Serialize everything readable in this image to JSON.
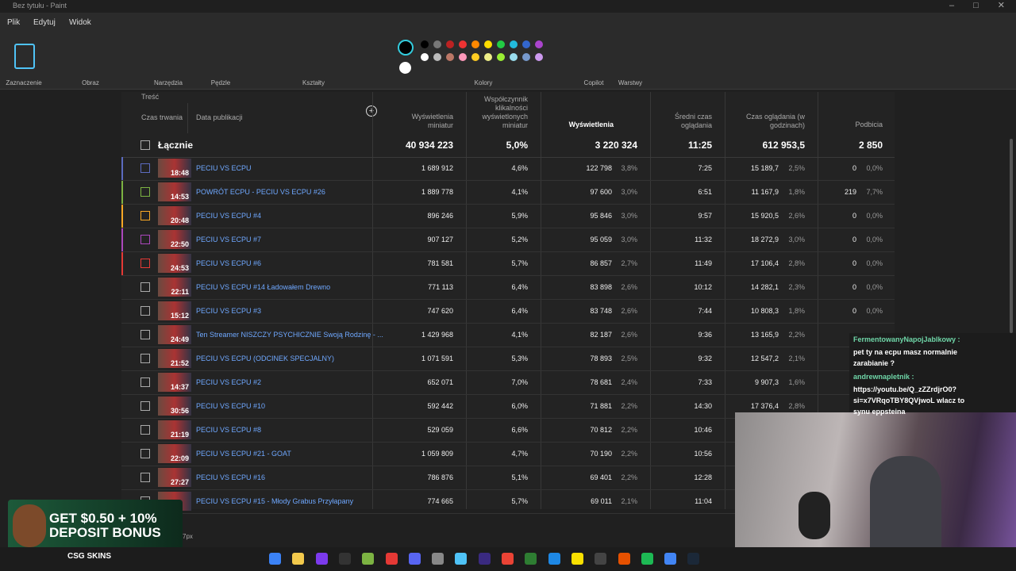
{
  "window": {
    "title": "Bez tytułu - Paint"
  },
  "menu": [
    "Plik",
    "Edytuj",
    "Widok"
  ],
  "ribbon": [
    "Zaznaczenie",
    "Obraz",
    "Narzędzia",
    "Pędzle",
    "Kształty",
    "Kolory",
    "Copilot",
    "Warstwy"
  ],
  "table": {
    "headers": {
      "content": "Treść",
      "duration": "Czas trwania",
      "published": "Data publikacji",
      "impressions": "Wyświetlenia miniatur",
      "ctr": "Współczynnik klikalności wyświetlonych miniatur",
      "views": "Wyświetlenia",
      "avg": "Średni czas oglądania",
      "hours": "Czas oglądania (w godzinach)",
      "subs": "Podbicia"
    },
    "total": {
      "label": "Łącznie",
      "impressions": "40 934 223",
      "ctr": "5,0%",
      "views": "3 220 324",
      "avg": "11:25",
      "hours": "612 953,5",
      "subs": "2 850"
    },
    "rows": [
      {
        "duration": "18:48",
        "title": "PECIU VS ECPU",
        "impressions": "1 689 912",
        "ctr": "4,6%",
        "views": "122 798",
        "views_share": "3,8%",
        "avg": "7:25",
        "hours": "15 189,7",
        "hours_share": "2,5%",
        "subs": "0",
        "subs_share": "0,0%"
      },
      {
        "duration": "14:53",
        "title": "POWRÓT ECPU - PECIU VS ECPU #26",
        "impressions": "1 889 778",
        "ctr": "4,1%",
        "views": "97 600",
        "views_share": "3,0%",
        "avg": "6:51",
        "hours": "11 167,9",
        "hours_share": "1,8%",
        "subs": "219",
        "subs_share": "7,7%"
      },
      {
        "duration": "20:48",
        "title": "PECIU VS ECPU #4",
        "impressions": "896 246",
        "ctr": "5,9%",
        "views": "95 846",
        "views_share": "3,0%",
        "avg": "9:57",
        "hours": "15 920,5",
        "hours_share": "2,6%",
        "subs": "0",
        "subs_share": "0,0%"
      },
      {
        "duration": "22:50",
        "title": "PECIU VS ECPU #7",
        "impressions": "907 127",
        "ctr": "5,2%",
        "views": "95 059",
        "views_share": "3,0%",
        "avg": "11:32",
        "hours": "18 272,9",
        "hours_share": "3,0%",
        "subs": "0",
        "subs_share": "0,0%"
      },
      {
        "duration": "24:53",
        "title": "PECIU VS ECPU #6",
        "impressions": "781 581",
        "ctr": "5,7%",
        "views": "86 857",
        "views_share": "2,7%",
        "avg": "11:49",
        "hours": "17 106,4",
        "hours_share": "2,8%",
        "subs": "0",
        "subs_share": "0,0%"
      },
      {
        "duration": "22:11",
        "title": "PECIU VS ECPU #14 Ładowałem Drewno",
        "impressions": "771 113",
        "ctr": "6,4%",
        "views": "83 898",
        "views_share": "2,6%",
        "avg": "10:12",
        "hours": "14 282,1",
        "hours_share": "2,3%",
        "subs": "0",
        "subs_share": "0,0%"
      },
      {
        "duration": "15:12",
        "title": "PECIU VS ECPU #3",
        "impressions": "747 620",
        "ctr": "6,4%",
        "views": "83 748",
        "views_share": "2,6%",
        "avg": "7:44",
        "hours": "10 808,3",
        "hours_share": "1,8%",
        "subs": "0",
        "subs_share": "0,0%"
      },
      {
        "duration": "24:49",
        "title": "Ten Streamer NISZCZY PSYCHICZNIE Swoją Rodzinę - ...",
        "impressions": "1 429 968",
        "ctr": "4,1%",
        "views": "82 187",
        "views_share": "2,6%",
        "avg": "9:36",
        "hours": "13 165,9",
        "hours_share": "2,2%",
        "subs": null,
        "subs_share": null
      },
      {
        "duration": "21:52",
        "title": "PECIU VS ECPU (ODCINEK SPECJALNY)",
        "impressions": "1 071 591",
        "ctr": "5,3%",
        "views": "78 893",
        "views_share": "2,5%",
        "avg": "9:32",
        "hours": "12 547,2",
        "hours_share": "2,1%",
        "subs": null,
        "subs_share": null
      },
      {
        "duration": "14:37",
        "title": "PECIU VS ECPU #2",
        "impressions": "652 071",
        "ctr": "7,0%",
        "views": "78 681",
        "views_share": "2,4%",
        "avg": "7:33",
        "hours": "9 907,3",
        "hours_share": "1,6%",
        "subs": null,
        "subs_share": null
      },
      {
        "duration": "30:56",
        "title": "PECIU VS ECPU #10",
        "impressions": "592 442",
        "ctr": "6,0%",
        "views": "71 881",
        "views_share": "2,2%",
        "avg": "14:30",
        "hours": "17 376,4",
        "hours_share": "2,8%",
        "subs": null,
        "subs_share": null
      },
      {
        "duration": "21:19",
        "title": "PECIU VS ECPU #8",
        "impressions": "529 059",
        "ctr": "6,6%",
        "views": "70 812",
        "views_share": "2,2%",
        "avg": "10:46",
        "hours": null,
        "hours_share": null,
        "subs": null,
        "subs_share": null
      },
      {
        "duration": "22:09",
        "title": "PECIU VS ECPU #21 - GOAT",
        "impressions": "1 059 809",
        "ctr": "4,7%",
        "views": "70 190",
        "views_share": "2,2%",
        "avg": "10:56",
        "hours": null,
        "hours_share": null,
        "subs": null,
        "subs_share": null
      },
      {
        "duration": "27:27",
        "title": "PECIU VS ECPU #16",
        "impressions": "786 876",
        "ctr": "5,1%",
        "views": "69 401",
        "views_share": "2,2%",
        "avg": "12:28",
        "hours": null,
        "hours_share": null,
        "subs": null,
        "subs_share": null
      },
      {
        "duration": null,
        "title": "PECIU VS ECPU #15 - Młody Grabus Przyłapany",
        "impressions": "774 665",
        "ctr": "5,7%",
        "views": "69 011",
        "views_share": "2,1%",
        "avg": "11:04",
        "hours": null,
        "hours_share": null,
        "subs": null,
        "subs_share": null
      }
    ]
  },
  "chat": [
    {
      "user": "FermentowanyNapojJablkowy :",
      "text": "pet ty na ecpu masz normalnie zarabianie ?"
    },
    {
      "user": "andrewnapletnik :",
      "text": "https://youtu.be/Q_zZZrdjrO0? si=x7VRqoTBY8QVjwoL wlacz to synu eppsteina"
    }
  ],
  "ad": {
    "headline": "GET $0.50 + 10% DEPOSIT BONUS",
    "brand": "CSG SKINS"
  },
  "status": "7px"
}
